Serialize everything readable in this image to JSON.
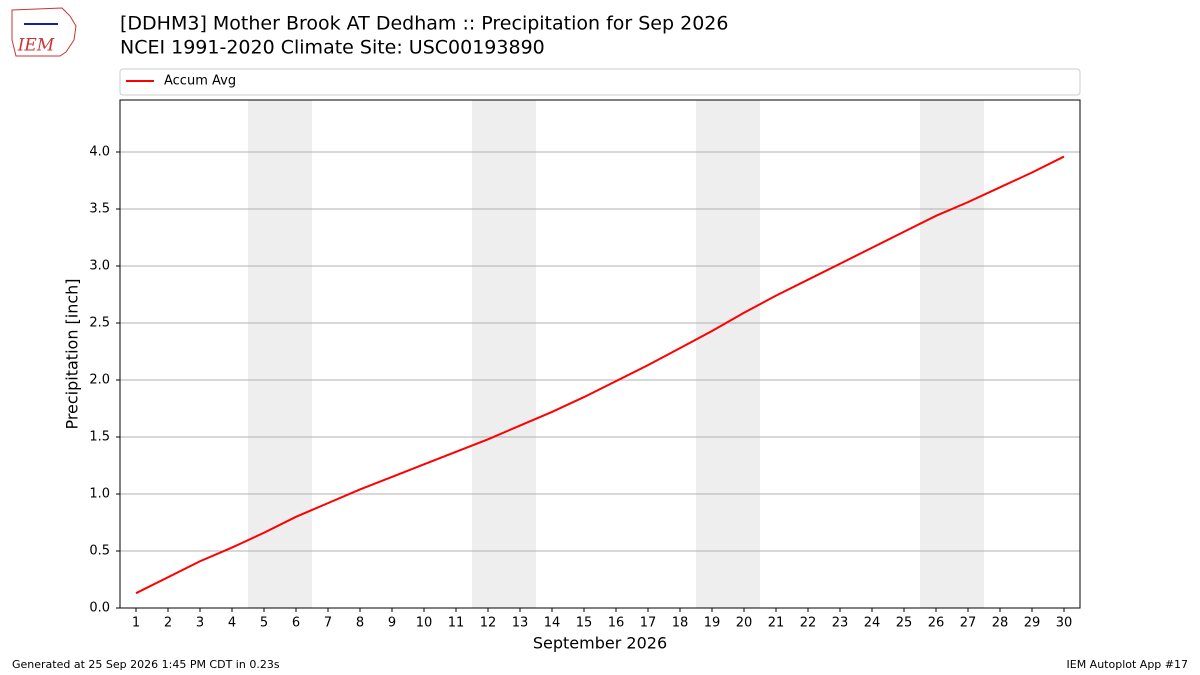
{
  "logo": "IEM",
  "footer_left": "Generated at 25 Sep 2026 1:45 PM CDT in 0.23s",
  "footer_right": "IEM Autoplot App #17",
  "chart_data": {
    "type": "line",
    "title": "[DDHM3] Mother Brook  AT Dedham :: Precipitation for Sep 2026",
    "subtitle": "NCEI 1991-2020 Climate Site: USC00193890",
    "x_label": "September 2026",
    "y_label": "Precipitation [inch]",
    "x": [
      1,
      2,
      3,
      4,
      5,
      6,
      7,
      8,
      9,
      10,
      11,
      12,
      13,
      14,
      15,
      16,
      17,
      18,
      19,
      20,
      21,
      22,
      23,
      24,
      25,
      26,
      27,
      28,
      29,
      30
    ],
    "series": [
      {
        "name": "Accum Avg",
        "color": "#ff0000",
        "values": [
          0.13,
          0.27,
          0.41,
          0.53,
          0.66,
          0.8,
          0.92,
          1.04,
          1.15,
          1.26,
          1.37,
          1.48,
          1.6,
          1.72,
          1.85,
          1.99,
          2.13,
          2.28,
          2.43,
          2.59,
          2.74,
          2.88,
          3.02,
          3.16,
          3.3,
          3.44,
          3.56,
          3.69,
          3.82,
          3.96
        ]
      }
    ],
    "shaded_x_ranges": [
      [
        4.5,
        6.5
      ],
      [
        11.5,
        13.5
      ],
      [
        18.5,
        20.5
      ],
      [
        25.5,
        27.5
      ]
    ],
    "shade_color": "#eeeeee",
    "xlim": [
      0.5,
      30.5
    ],
    "xticks": [
      1,
      2,
      3,
      4,
      5,
      6,
      7,
      8,
      9,
      10,
      11,
      12,
      13,
      14,
      15,
      16,
      17,
      18,
      19,
      20,
      21,
      22,
      23,
      24,
      25,
      26,
      27,
      28,
      29,
      30
    ],
    "ylim": [
      0,
      4.456
    ],
    "yticks": [
      {
        "value": 0,
        "label": "0.0"
      },
      0.5,
      {
        "value": 1,
        "label": "1.0"
      },
      1.5,
      {
        "value": 2,
        "label": "2.0"
      },
      2.5,
      {
        "value": 3,
        "label": "3.0"
      },
      3.5,
      {
        "value": 4,
        "label": "4.0"
      }
    ],
    "grid": true,
    "legend": "top"
  }
}
